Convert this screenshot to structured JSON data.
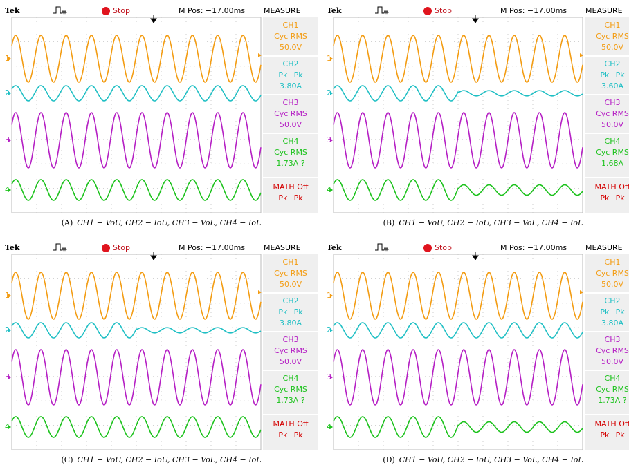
{
  "panels": [
    {
      "label": "(A)",
      "caption": "CH1 − VoU, CH2 − IoU, CH3 − VoL, CH4 − IoL",
      "header": {
        "brand": "Tek",
        "state": "Stop",
        "position": "M Pos: −17.00ms",
        "menu": "MEASURE"
      },
      "channels": [
        "1",
        "2",
        "3",
        "4"
      ],
      "measurements": [
        {
          "channel": "CH1",
          "type": "Cyc RMS",
          "value": "50.0V"
        },
        {
          "channel": "CH2",
          "type": "Pk−Pk",
          "value": "3.80A"
        },
        {
          "channel": "CH3",
          "type": "Cyc RMS",
          "value": "50.0V"
        },
        {
          "channel": "CH4",
          "type": "Cyc RMS",
          "value": "1.73A ?"
        }
      ],
      "math": {
        "state": "MATH Off",
        "type": "Pk−Pk"
      }
    },
    {
      "label": "(B)",
      "caption": "CH1 − VoU, CH2 − IoU, CH3 − VoL, CH4 − IoL",
      "header": {
        "brand": "Tek",
        "state": "Stop",
        "position": "M Pos: −17.00ms",
        "menu": "MEASURE"
      },
      "channels": [
        "1",
        "2",
        "3",
        "4"
      ],
      "measurements": [
        {
          "channel": "CH1",
          "type": "Cyc RMS",
          "value": "50.0V"
        },
        {
          "channel": "CH2",
          "type": "Pk−Pk",
          "value": "3.60A"
        },
        {
          "channel": "CH3",
          "type": "Cyc RMS",
          "value": "50.0V"
        },
        {
          "channel": "CH4",
          "type": "Cyc RMS",
          "value": "1.68A"
        }
      ],
      "math": {
        "state": "MATH Off",
        "type": "Pk−Pk"
      }
    },
    {
      "label": "(C)",
      "caption": "CH1 − VoU, CH2 − IoU, CH3 − VoL, CH4 − IoL",
      "header": {
        "brand": "Tek",
        "state": "Stop",
        "position": "M Pos: −17.00ms",
        "menu": "MEASURE"
      },
      "channels": [
        "1",
        "2",
        "3",
        "4"
      ],
      "measurements": [
        {
          "channel": "CH1",
          "type": "Cyc RMS",
          "value": "50.0V"
        },
        {
          "channel": "CH2",
          "type": "Pk−Pk",
          "value": "3.80A"
        },
        {
          "channel": "CH3",
          "type": "Cyc RMS",
          "value": "50.0V"
        },
        {
          "channel": "CH4",
          "type": "Cyc RMS",
          "value": "1.73A ?"
        }
      ],
      "math": {
        "state": "MATH Off",
        "type": "Pk−Pk"
      }
    },
    {
      "label": "(D)",
      "caption": "CH1 − VoU, CH2 − IoU, CH3 − VoL, CH4 − IoL",
      "header": {
        "brand": "Tek",
        "state": "Stop",
        "position": "M Pos: −17.00ms",
        "menu": "MEASURE"
      },
      "channels": [
        "1",
        "2",
        "3",
        "4"
      ],
      "measurements": [
        {
          "channel": "CH1",
          "type": "Cyc RMS",
          "value": "50.0V"
        },
        {
          "channel": "CH2",
          "type": "Pk−Pk",
          "value": "3.80A"
        },
        {
          "channel": "CH3",
          "type": "Cyc RMS",
          "value": "50.0V"
        },
        {
          "channel": "CH4",
          "type": "Cyc RMS",
          "value": "1.73A ?"
        }
      ],
      "math": {
        "state": "MATH Off",
        "type": "Pk−Pk"
      }
    }
  ]
}
